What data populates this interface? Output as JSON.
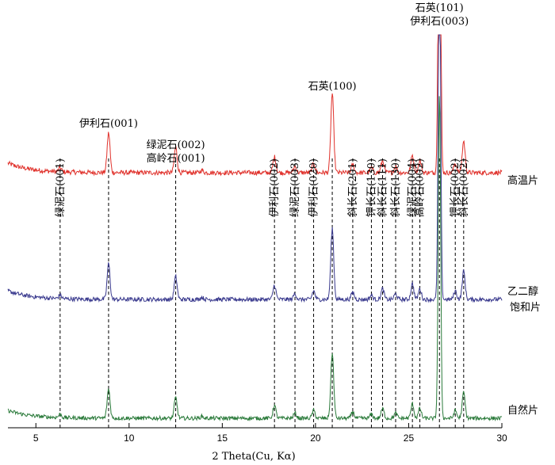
{
  "chart_data": {
    "type": "line",
    "xlabel": "2 Theta(Cu, Kα)",
    "ylabel": "",
    "xlim": [
      3.5,
      30
    ],
    "x_ticks": [
      5,
      10,
      15,
      20,
      25,
      30
    ],
    "grid": false,
    "series": [
      {
        "name": "高温片",
        "color": "#e0322c",
        "offset": 0
      },
      {
        "name": "乙二醇饱和片",
        "color": "#3a3a8e",
        "offset": 1
      },
      {
        "name": "自然片",
        "color": "#2a7a3a",
        "offset": 2
      }
    ],
    "peaks": [
      {
        "x": 6.3,
        "label": "绿泥石(001)",
        "rotated": true,
        "h": [
          0.05,
          0.05,
          0.05
        ]
      },
      {
        "x": 8.9,
        "label": "伊利石(001)",
        "rotated": false,
        "h": [
          0.5,
          0.5,
          0.45
        ]
      },
      {
        "x": 12.5,
        "label": "绿泥石(002)\n高岭石(001)",
        "rotated": false,
        "h": [
          0.32,
          0.32,
          0.32
        ]
      },
      {
        "x": 13.9,
        "label": "",
        "rotated": false,
        "h": [
          0.03,
          0.03,
          0.03
        ]
      },
      {
        "x": 17.8,
        "label": "伊利石(002)",
        "rotated": true,
        "h": [
          0.2,
          0.2,
          0.2
        ]
      },
      {
        "x": 18.9,
        "label": "绿泥石(003)",
        "rotated": true,
        "h": [
          0.08,
          0.08,
          0.08
        ]
      },
      {
        "x": 19.9,
        "label": "伊利石(020)",
        "rotated": true,
        "h": [
          0.12,
          0.12,
          0.12
        ]
      },
      {
        "x": 20.9,
        "label": "石英(100)",
        "rotated": false,
        "h": [
          1.0,
          1.0,
          1.0
        ]
      },
      {
        "x": 22.0,
        "label": "斜长石(201)",
        "rotated": true,
        "h": [
          0.1,
          0.1,
          0.1
        ]
      },
      {
        "x": 23.0,
        "label": "钾长石(130)",
        "rotated": true,
        "h": [
          0.06,
          0.06,
          0.06
        ]
      },
      {
        "x": 23.6,
        "label": "斜长石(111)",
        "rotated": true,
        "h": [
          0.15,
          0.15,
          0.15
        ]
      },
      {
        "x": 24.3,
        "label": "斜长石(130)",
        "rotated": true,
        "h": [
          0.08,
          0.08,
          0.08
        ]
      },
      {
        "x": 25.2,
        "label": "绿泥石(004)",
        "rotated": true,
        "h": [
          0.22,
          0.22,
          0.22
        ]
      },
      {
        "x": 25.6,
        "label": "高岭石(002)",
        "rotated": true,
        "h": [
          0.15,
          0.15,
          0.15
        ]
      },
      {
        "x": 26.65,
        "label": "石英(101)\n伊利石(003)",
        "rotated": false,
        "h": [
          5.0,
          5.0,
          5.0
        ]
      },
      {
        "x": 27.5,
        "label": "钾长石(002)",
        "rotated": true,
        "h": [
          0.12,
          0.12,
          0.12
        ]
      },
      {
        "x": 27.95,
        "label": "斜长石(002)",
        "rotated": true,
        "h": [
          0.4,
          0.4,
          0.4
        ]
      }
    ]
  }
}
